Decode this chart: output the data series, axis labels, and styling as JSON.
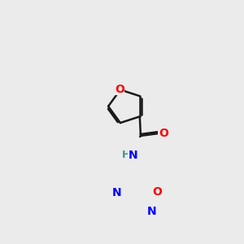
{
  "background_color": "#ebebeb",
  "bond_color": "#1a1a1a",
  "atom_colors": {
    "O": "#ff0000",
    "N": "#0000ff",
    "H": "#4a9090"
  },
  "bond_width": 1.8,
  "figsize": [
    3.0,
    3.0
  ],
  "dpi": 100
}
